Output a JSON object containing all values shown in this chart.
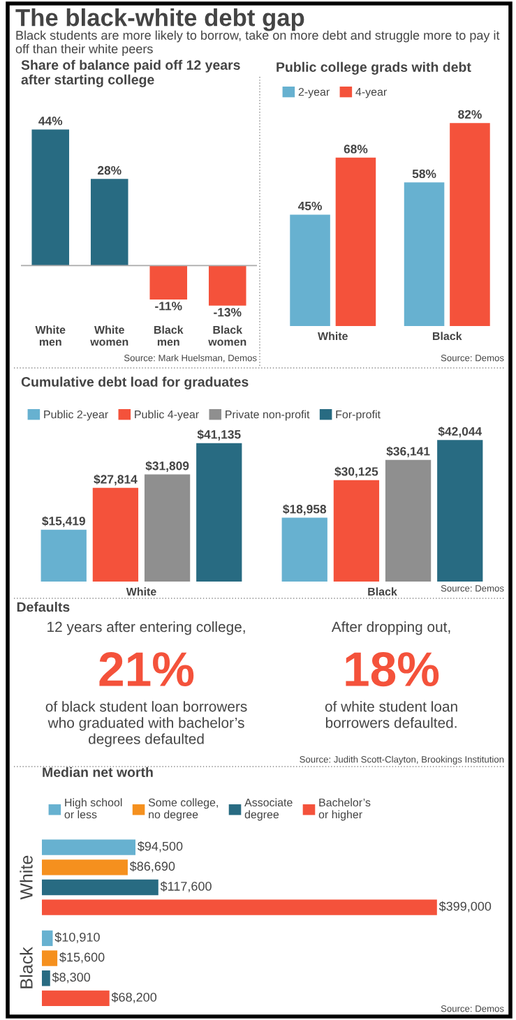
{
  "chart_data": [
    {
      "type": "other",
      "title": "The black-white debt gap",
      "subtitle": "Black students are more likely to borrow, take on more debt and struggle more to pay it off than their white peers"
    },
    {
      "type": "bar",
      "title": "Share of balance paid off 12 years\nafter starting college",
      "categories": [
        "White\nmen",
        "White\nwomen",
        "Black\nmen",
        "Black\nwomen"
      ],
      "values": [
        44,
        28,
        -11,
        -13
      ],
      "colors": [
        "#286b82",
        "#286b82",
        "#f4523b",
        "#f4523b"
      ],
      "value_labels": [
        "44%",
        "28%",
        "-11%",
        "-13%"
      ],
      "tick_labels": "x",
      "annotations": [
        "Source: Mark Huelsman, Demos"
      ]
    },
    {
      "type": "bar",
      "title": "Public college grads with debt",
      "categories": [
        "White",
        "Black"
      ],
      "series": [
        {
          "name": "2-year",
          "color": "#67b1d0",
          "values": [
            45,
            58
          ],
          "value_labels": [
            "45%",
            "58%"
          ]
        },
        {
          "name": "4-year",
          "color": "#f4523b",
          "values": [
            68,
            82
          ],
          "value_labels": [
            "68%",
            "82%"
          ]
        }
      ],
      "legend": "top left",
      "tick_labels": "x",
      "annotations": [
        "Source: Demos"
      ]
    },
    {
      "type": "bar",
      "title": "Cumulative debt load for graduates",
      "categories": [
        "White",
        "Black"
      ],
      "series": [
        {
          "name": "Public 2-year",
          "color": "#67b1d0",
          "values": [
            15419,
            18958
          ],
          "value_labels": [
            "$15,419",
            "$18,958"
          ]
        },
        {
          "name": "Public 4-year",
          "color": "#f4523b",
          "values": [
            27814,
            30125
          ],
          "value_labels": [
            "$27,814",
            "$30,125"
          ]
        },
        {
          "name": "Private non-profit",
          "color": "#8f8f8f",
          "values": [
            31809,
            36141
          ],
          "value_labels": [
            "$31,809",
            "$36,141"
          ]
        },
        {
          "name": "For-profit",
          "color": "#286b82",
          "values": [
            41135,
            42044
          ],
          "value_labels": [
            "$41,135",
            "$42,044"
          ]
        }
      ],
      "legend": "top left",
      "tick_labels": "x",
      "annotations": [
        "Source: Demos"
      ]
    },
    {
      "type": "other",
      "title": "Defaults",
      "annotations": [
        "12 years after entering college,",
        "21%",
        "of black student loan borrowers\nwho graduated with bachelor’s\ndegrees defaulted",
        "After dropping out,",
        "18%",
        "of white student loan\nborrowers defaulted.",
        "Source: Judith Scott-Clayton, Brookings Institution"
      ]
    },
    {
      "type": "bar",
      "orientation": "horizontal",
      "title": "Median net worth",
      "categories": [
        "White",
        "Black"
      ],
      "series": [
        {
          "name": "High school\nor less",
          "color": "#67b1d0",
          "values": [
            94500,
            10910
          ],
          "value_labels": [
            "$94,500",
            "$10,910"
          ]
        },
        {
          "name": "Some college,\nno degree",
          "color": "#f5901e",
          "values": [
            86690,
            15600
          ],
          "value_labels": [
            "$86,690",
            "$15,600"
          ]
        },
        {
          "name": "Associate\ndegree",
          "color": "#286b82",
          "values": [
            117600,
            8300
          ],
          "value_labels": [
            "$117,600",
            "$8,300"
          ]
        },
        {
          "name": "Bachelor’s\nor higher",
          "color": "#f4523b",
          "values": [
            399000,
            68200
          ],
          "value_labels": [
            "$399,000",
            "$68,200"
          ]
        }
      ],
      "legend": "top left",
      "tick_labels": "y",
      "annotations": [
        "Source: Demos"
      ]
    }
  ]
}
